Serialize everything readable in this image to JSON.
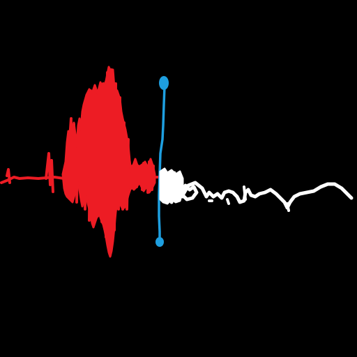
{
  "colors": {
    "background": "#000000",
    "played_waveform": "#ED1C24",
    "unplayed_waveform": "#FFFFFF",
    "playhead": "#1E9FE0"
  },
  "playback": {
    "progress": 0.44
  },
  "icons": {
    "playhead_top": "circle-handle-icon",
    "playhead_bottom": "circle-handle-icon"
  }
}
